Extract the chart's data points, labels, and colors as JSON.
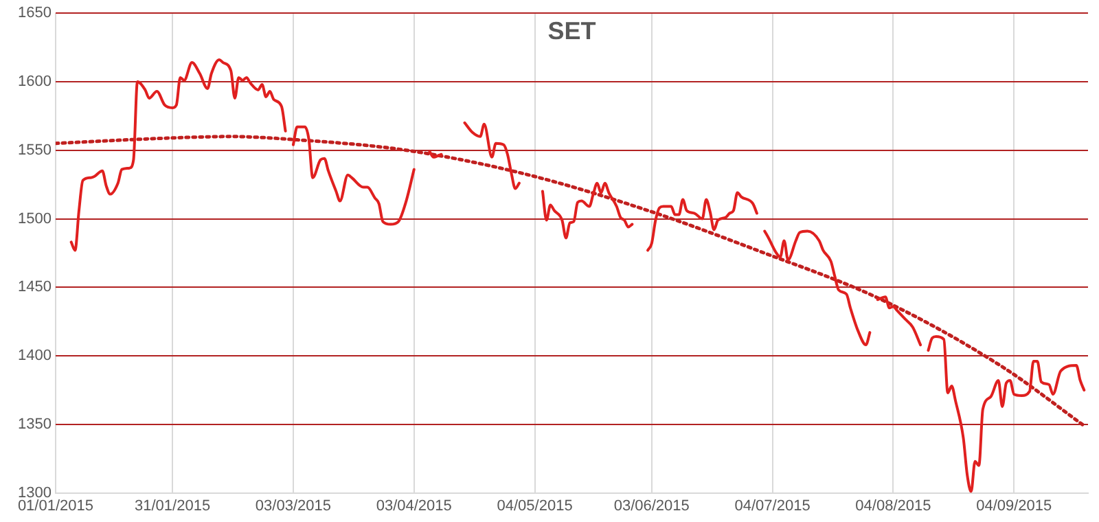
{
  "chart_data": {
    "type": "line",
    "title": "SET",
    "legend": false,
    "grid": true,
    "marker": "none",
    "xlim": [
      "2015-01-01",
      "2015-09-23"
    ],
    "xticks": [
      {
        "value": "2015-01-01",
        "label": "01/01/2015"
      },
      {
        "value": "2015-01-31",
        "label": "31/01/2015"
      },
      {
        "value": "2015-03-03",
        "label": "03/03/2015"
      },
      {
        "value": "2015-04-03",
        "label": "03/04/2015"
      },
      {
        "value": "2015-05-04",
        "label": "04/05/2015"
      },
      {
        "value": "2015-06-03",
        "label": "03/06/2015"
      },
      {
        "value": "2015-07-04",
        "label": "04/07/2015"
      },
      {
        "value": "2015-08-04",
        "label": "04/08/2015"
      },
      {
        "value": "2015-09-04",
        "label": "04/09/2015"
      }
    ],
    "ylim": [
      1300,
      1650
    ],
    "yticks": [
      1300,
      1350,
      1400,
      1450,
      1500,
      1550,
      1600,
      1650
    ],
    "series": [
      {
        "color": "#e0201f",
        "line_style": "solid",
        "x": [
          "2015-01-05",
          "2015-01-06",
          "2015-01-07",
          "2015-01-08",
          "2015-01-10",
          "2015-01-11",
          "2015-01-13",
          "2015-01-14",
          "2015-01-15",
          "2015-01-17",
          "2015-01-18",
          "2015-01-20",
          "2015-01-21",
          "2015-01-22",
          "2015-01-24",
          "2015-01-25",
          "2015-01-27",
          "2015-01-29",
          "2015-01-31",
          "2015-02-01",
          "2015-02-02",
          "2015-02-03",
          "2015-02-05",
          "2015-02-07",
          "2015-02-09",
          "2015-02-10",
          "2015-02-12",
          "2015-02-13",
          "2015-02-15",
          "2015-02-16",
          "2015-02-17",
          "2015-02-18",
          "2015-02-19",
          "2015-02-20",
          "2015-02-22",
          "2015-02-23",
          "2015-02-24",
          "2015-02-25",
          "2015-02-26",
          "2015-02-28",
          "2015-03-01",
          "2015-03-02",
          "2015-03-03",
          "2015-03-04",
          "2015-03-06",
          "2015-03-07",
          "2015-03-08",
          "2015-03-10",
          "2015-03-11",
          "2015-03-12",
          "2015-03-14",
          "2015-03-15",
          "2015-03-17",
          "2015-03-18",
          "2015-03-21",
          "2015-03-22",
          "2015-03-24",
          "2015-03-25",
          "2015-03-26",
          "2015-03-28",
          "2015-03-30",
          "2015-04-01",
          "2015-04-03",
          "2015-04-05",
          "2015-04-07",
          "2015-04-08",
          "2015-04-10",
          "2015-04-13",
          "2015-04-16",
          "2015-04-18",
          "2015-04-20",
          "2015-04-21",
          "2015-04-23",
          "2015-04-24",
          "2015-04-26",
          "2015-04-27",
          "2015-04-28",
          "2015-04-29",
          "2015-04-30",
          "2015-05-03",
          "2015-05-06",
          "2015-05-07",
          "2015-05-08",
          "2015-05-09",
          "2015-05-11",
          "2015-05-12",
          "2015-05-13",
          "2015-05-14",
          "2015-05-15",
          "2015-05-16",
          "2015-05-18",
          "2015-05-19",
          "2015-05-20",
          "2015-05-21",
          "2015-05-22",
          "2015-05-23",
          "2015-05-25",
          "2015-05-26",
          "2015-05-27",
          "2015-05-28",
          "2015-05-29",
          "2015-05-31",
          "2015-06-02",
          "2015-06-03",
          "2015-06-04",
          "2015-06-05",
          "2015-06-06",
          "2015-06-08",
          "2015-06-09",
          "2015-06-10",
          "2015-06-11",
          "2015-06-12",
          "2015-06-14",
          "2015-06-16",
          "2015-06-17",
          "2015-06-18",
          "2015-06-19",
          "2015-06-20",
          "2015-06-22",
          "2015-06-23",
          "2015-06-24",
          "2015-06-25",
          "2015-06-26",
          "2015-06-29",
          "2015-06-30",
          "2015-07-01",
          "2015-07-02",
          "2015-07-03",
          "2015-07-05",
          "2015-07-06",
          "2015-07-07",
          "2015-07-08",
          "2015-07-10",
          "2015-07-11",
          "2015-07-13",
          "2015-07-16",
          "2015-07-17",
          "2015-07-19",
          "2015-07-20",
          "2015-07-21",
          "2015-07-23",
          "2015-07-24",
          "2015-07-26",
          "2015-07-28",
          "2015-07-29",
          "2015-07-30",
          "2015-07-31",
          "2015-08-02",
          "2015-08-03",
          "2015-08-04",
          "2015-08-05",
          "2015-08-07",
          "2015-08-09",
          "2015-08-11",
          "2015-08-12",
          "2015-08-13",
          "2015-08-14",
          "2015-08-15",
          "2015-08-17",
          "2015-08-18",
          "2015-08-19",
          "2015-08-20",
          "2015-08-22",
          "2015-08-23",
          "2015-08-24",
          "2015-08-25",
          "2015-08-26",
          "2015-08-27",
          "2015-08-29",
          "2015-08-31",
          "2015-09-01",
          "2015-09-02",
          "2015-09-03",
          "2015-09-04",
          "2015-09-06",
          "2015-09-08",
          "2015-09-09",
          "2015-09-10",
          "2015-09-11",
          "2015-09-13",
          "2015-09-14",
          "2015-09-16",
          "2015-09-20",
          "2015-09-21",
          "2015-09-22"
        ],
        "values": [
          1483,
          1477,
          1506,
          1528,
          1530,
          1531,
          1535,
          1524,
          1518,
          1526,
          1536,
          1537,
          1543,
          1600,
          1594,
          1588,
          1593,
          1583,
          1581,
          1583,
          1603,
          1601,
          1614,
          1606,
          1595,
          1606,
          1616,
          1614,
          1608,
          1588,
          1603,
          1601,
          1603,
          1599,
          1594,
          1598,
          1589,
          1593,
          1587,
          1582,
          1564,
          null,
          1554,
          1567,
          1567,
          1558,
          1530,
          1543,
          1544,
          1535,
          1520,
          1513,
          1532,
          1530,
          1523,
          1523,
          1515,
          1511,
          1498,
          1496,
          1498,
          1513,
          1536,
          null,
          1549,
          1545,
          1547,
          null,
          1570,
          1563,
          1560,
          1569,
          1545,
          1555,
          1554,
          1547,
          1533,
          1522,
          1526,
          null,
          1520,
          1499,
          1510,
          1506,
          1499,
          1486,
          1497,
          1498,
          1512,
          1513,
          1509,
          1518,
          1526,
          1519,
          1526,
          1519,
          1509,
          1501,
          1499,
          1494,
          1496,
          null,
          1477,
          1482,
          1499,
          1508,
          1509,
          1509,
          1503,
          1503,
          1514,
          1506,
          1504,
          1500,
          1514,
          1505,
          1492,
          1499,
          1501,
          1504,
          1506,
          1519,
          1516,
          1511,
          1504,
          null,
          1491,
          1486,
          1475,
          1472,
          1484,
          1470,
          1484,
          1490,
          1491,
          1484,
          1477,
          1469,
          1458,
          1448,
          1445,
          1435,
          1418,
          1408,
          1417,
          null,
          1441,
          1443,
          1435,
          1436,
          1433,
          1427,
          1421,
          1408,
          null,
          1404,
          1413,
          1414,
          1412,
          1373,
          1378,
          1367,
          1340,
          1313,
          1301,
          1323,
          1320,
          1361,
          1370,
          1382,
          1363,
          1380,
          1382,
          1372,
          1371,
          1374,
          1396,
          1396,
          1381,
          1379,
          1372,
          1389,
          1393,
          1382,
          1375
        ]
      },
      {
        "color": "#c0201f",
        "line_style": "dotted",
        "x": [
          "2015-01-01",
          "2015-01-31",
          "2015-02-15",
          "2015-03-02",
          "2015-04-01",
          "2015-05-01",
          "2015-06-01",
          "2015-07-01",
          "2015-08-01",
          "2015-09-01",
          "2015-09-22"
        ],
        "values": [
          1555,
          1559,
          1560,
          1558,
          1550,
          1533,
          1507,
          1476,
          1441,
          1392,
          1349
        ]
      }
    ]
  }
}
